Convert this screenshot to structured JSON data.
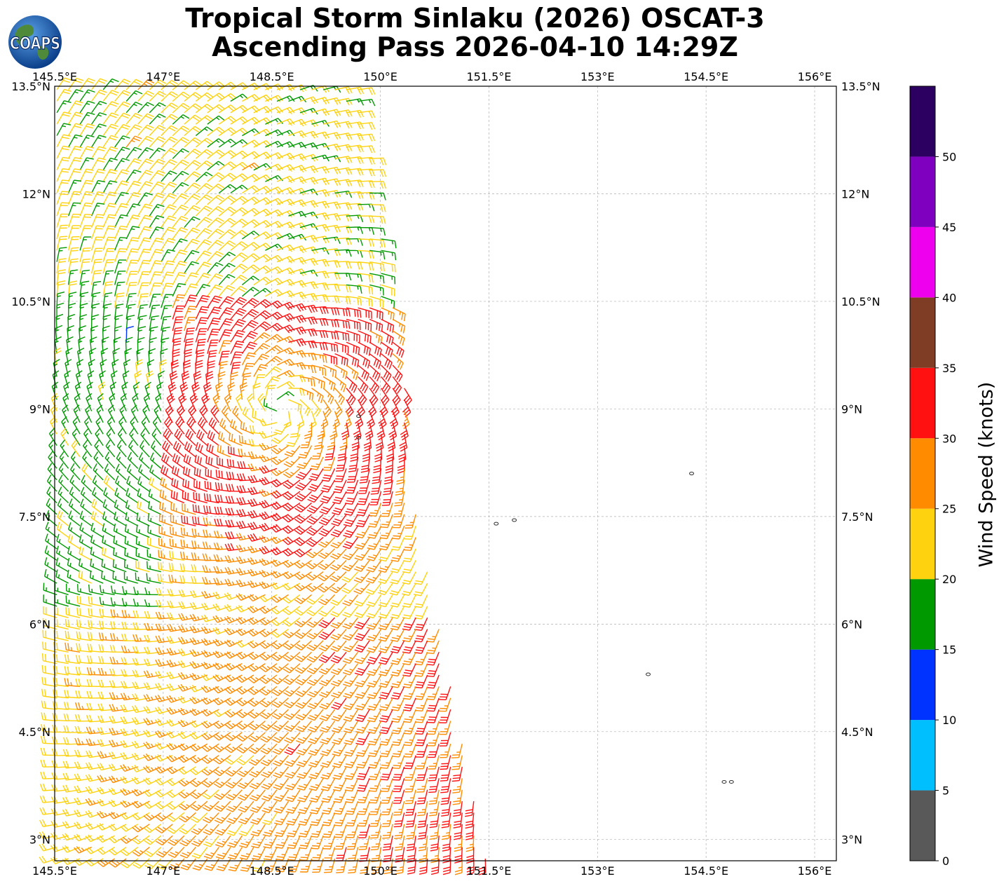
{
  "header": {
    "title_line1": "Tropical Storm Sinlaku (2026) OSCAT-3",
    "title_line2": "Ascending Pass 2026-04-10 14:29Z"
  },
  "logo": {
    "text": "COAPS",
    "icon": "globe-logo-icon"
  },
  "map": {
    "extent": {
      "lon_min": 145.5,
      "lon_max": 156.3,
      "lat_min": 2.7,
      "lat_max": 13.5
    },
    "lon_ticks": [
      {
        "value": 145.5,
        "label": "145.5°E"
      },
      {
        "value": 147.0,
        "label": "147°E"
      },
      {
        "value": 148.5,
        "label": "148.5°E"
      },
      {
        "value": 150.0,
        "label": "150°E"
      },
      {
        "value": 151.5,
        "label": "151.5°E"
      },
      {
        "value": 153.0,
        "label": "153°E"
      },
      {
        "value": 154.5,
        "label": "154.5°E"
      },
      {
        "value": 156.0,
        "label": "156°E"
      }
    ],
    "lat_ticks": [
      {
        "value": 13.5,
        "label": "13.5°N"
      },
      {
        "value": 12.0,
        "label": "12°N"
      },
      {
        "value": 10.5,
        "label": "10.5°N"
      },
      {
        "value": 9.0,
        "label": "9°N"
      },
      {
        "value": 7.5,
        "label": "7.5°N"
      },
      {
        "value": 6.0,
        "label": "6°N"
      },
      {
        "value": 4.5,
        "label": "4.5°N"
      },
      {
        "value": 3.0,
        "label": "3°N"
      }
    ],
    "grid": "dashed",
    "swath": {
      "east_edge": [
        [
          13.5,
          149.7
        ],
        [
          11.5,
          150.0
        ],
        [
          9.0,
          150.4
        ],
        [
          7.5,
          150.5
        ],
        [
          6.0,
          150.8
        ],
        [
          4.5,
          151.1
        ],
        [
          3.0,
          151.4
        ],
        [
          2.7,
          151.5
        ]
      ],
      "west_edge_lon": 145.5
    },
    "storm_center": {
      "lat": 9.0,
      "lon": 148.6
    },
    "islands": [
      {
        "lat": 8.9,
        "lon": 149.7
      },
      {
        "lat": 8.6,
        "lon": 149.7
      },
      {
        "lat": 8.1,
        "lon": 154.3
      },
      {
        "lat": 7.4,
        "lon": 151.6
      },
      {
        "lat": 7.45,
        "lon": 151.85
      },
      {
        "lat": 5.3,
        "lon": 153.7
      },
      {
        "lat": 3.8,
        "lon": 154.75
      },
      {
        "lat": 3.8,
        "lon": 154.85
      }
    ]
  },
  "colorbar": {
    "label": "Wind Speed (knots)",
    "range": [
      0,
      55
    ],
    "bins": [
      {
        "min": 0,
        "max": 5,
        "color": "#595959"
      },
      {
        "min": 5,
        "max": 10,
        "color": "#00bfff"
      },
      {
        "min": 10,
        "max": 15,
        "color": "#0033ff"
      },
      {
        "min": 15,
        "max": 20,
        "color": "#009900"
      },
      {
        "min": 20,
        "max": 25,
        "color": "#ffd20f"
      },
      {
        "min": 25,
        "max": 30,
        "color": "#ff8c00"
      },
      {
        "min": 30,
        "max": 35,
        "color": "#ff1111"
      },
      {
        "min": 35,
        "max": 40,
        "color": "#7f3d26"
      },
      {
        "min": 40,
        "max": 45,
        "color": "#ee00ee"
      },
      {
        "min": 45,
        "max": 50,
        "color": "#8000bf"
      },
      {
        "min": 50,
        "max": 55,
        "color": "#2b0060"
      }
    ],
    "ticks": [
      "0",
      "5",
      "10",
      "15",
      "20",
      "25",
      "30",
      "35",
      "40",
      "45",
      "50"
    ]
  }
}
